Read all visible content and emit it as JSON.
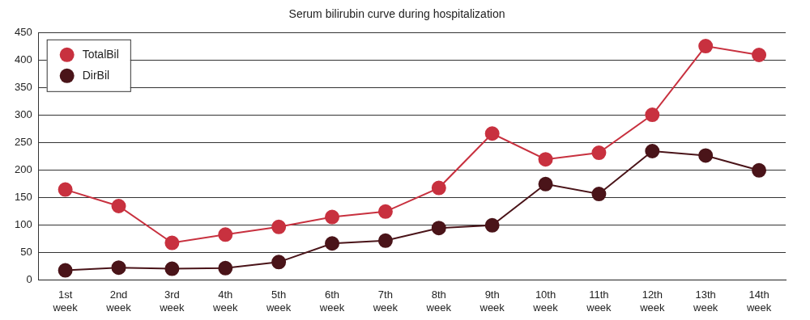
{
  "chart_data": {
    "type": "line",
    "title": "Serum bilirubin curve during hospitalization",
    "categories": [
      "1st week",
      "2nd week",
      "3rd week",
      "4th week",
      "5th week",
      "6th week",
      "7th week",
      "8th week",
      "9th week",
      "10th week",
      "11th week",
      "12th week",
      "13th week",
      "14th week"
    ],
    "series": [
      {
        "name": "TotalBil",
        "color": "#c8313f",
        "values": [
          165,
          135,
          68,
          83,
          97,
          115,
          125,
          168,
          267,
          220,
          232,
          301,
          426,
          410
        ]
      },
      {
        "name": "DirBil",
        "color": "#4a1419",
        "values": [
          18,
          23,
          21,
          22,
          33,
          67,
          72,
          95,
          100,
          175,
          157,
          235,
          227,
          200
        ]
      }
    ],
    "ylim": [
      0,
      450
    ],
    "yticks": [
      0,
      50,
      100,
      150,
      200,
      250,
      300,
      350,
      400,
      450
    ],
    "grid": true,
    "legend": "upper left",
    "marker": "circle"
  }
}
